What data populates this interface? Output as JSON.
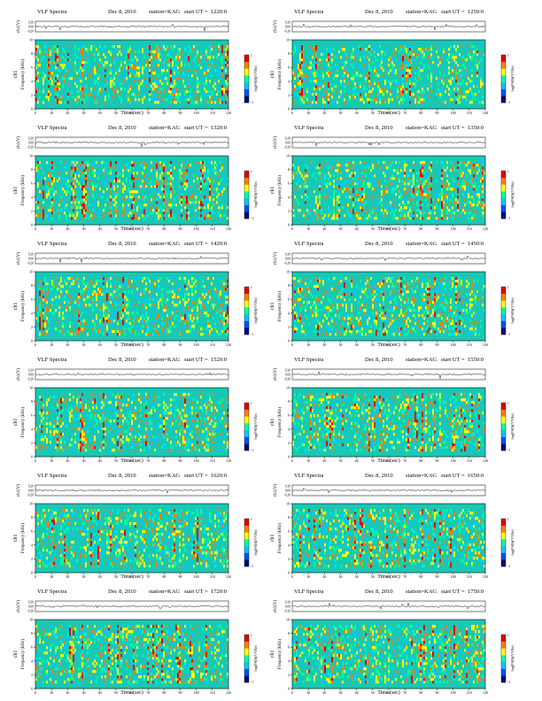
{
  "page": {
    "title": ""
  },
  "colors": {
    "bg": "#19c8b4",
    "scale": [
      "#000a78",
      "#0050ff",
      "#00c8ff",
      "#00ffa0",
      "#ffff00",
      "#ff8000",
      "#e00000"
    ],
    "trace": "#222222"
  },
  "chart_data": [
    {
      "type": "heatmap",
      "title": "VLF Spectra",
      "date": "Dec 8, 2010",
      "station": "station=KAG",
      "start_label": "start  UT  =",
      "start_ut": "1220:0",
      "xlabel": "Time  (sec)",
      "ylabel": "Frequency  (kHz)",
      "channel": "ch1",
      "top_ylabel": "ch1(V)",
      "cbar_label": "log(PSD)(V²/Hz)",
      "x_ticks": [
        0,
        10,
        20,
        30,
        40,
        50,
        60,
        70,
        80,
        90,
        100,
        110,
        120
      ],
      "y_ticks": [
        0,
        2,
        4,
        6,
        8,
        10
      ],
      "top_ticks": [
        "0.20",
        "0.00",
        "-0.20"
      ],
      "xlim": [
        0,
        120
      ],
      "ylim": [
        0,
        10
      ],
      "cbar_ticks": [
        "1",
        "-1"
      ]
    },
    {
      "type": "heatmap",
      "title": "VLF Spectra",
      "date": "Dec 8, 2010",
      "station": "station=KAG",
      "start_label": "start  UT  =",
      "start_ut": "1250:0",
      "xlabel": "Time  (sec)",
      "ylabel": "Frequency  (kHz)",
      "channel": "ch1",
      "top_ylabel": "ch1(V)",
      "cbar_label": "log(PSD)(V²/Hz)",
      "x_ticks": [
        0,
        10,
        20,
        30,
        40,
        50,
        60,
        70,
        80,
        90,
        100,
        110,
        120
      ],
      "y_ticks": [
        0,
        2,
        4,
        6,
        8,
        10
      ],
      "top_ticks": [
        "0.20",
        "0.00",
        "-0.20"
      ],
      "xlim": [
        0,
        120
      ],
      "ylim": [
        0,
        10
      ],
      "cbar_ticks": [
        "1",
        "-1"
      ]
    },
    {
      "type": "heatmap",
      "title": "VLF Spectra",
      "date": "Dec 8, 2010",
      "station": "station=KAG",
      "start_label": "start  UT  =",
      "start_ut": "1320:0",
      "xlabel": "Time  (sec)",
      "ylabel": "Frequency  (kHz)",
      "channel": "ch1",
      "top_ylabel": "ch1(V)",
      "cbar_label": "log(PSD)(V²/Hz)",
      "x_ticks": [
        0,
        10,
        20,
        30,
        40,
        50,
        60,
        70,
        80,
        90,
        100,
        110,
        120
      ],
      "y_ticks": [
        0,
        2,
        4,
        6,
        8,
        10
      ],
      "top_ticks": [
        "0.20",
        "0.00",
        "-0.20"
      ],
      "xlim": [
        0,
        120
      ],
      "ylim": [
        0,
        10
      ],
      "cbar_ticks": [
        "1",
        "-1"
      ]
    },
    {
      "type": "heatmap",
      "title": "VLF Spectra",
      "date": "Dec 8, 2010",
      "station": "station=KAG",
      "start_label": "start  UT  =",
      "start_ut": "1350:0",
      "xlabel": "Time  (sec)",
      "ylabel": "Frequency  (kHz)",
      "channel": "ch1",
      "top_ylabel": "ch1(V)",
      "cbar_label": "log(PSD)(V²/Hz)",
      "x_ticks": [
        0,
        10,
        20,
        30,
        40,
        50,
        60,
        70,
        80,
        90,
        100,
        110,
        120
      ],
      "y_ticks": [
        0,
        2,
        4,
        6,
        8,
        10
      ],
      "top_ticks": [
        "0.20",
        "0.00",
        "-0.20"
      ],
      "xlim": [
        0,
        120
      ],
      "ylim": [
        0,
        10
      ],
      "cbar_ticks": [
        "1",
        "-1"
      ]
    },
    {
      "type": "heatmap",
      "title": "VLF Spectra",
      "date": "Dec 8, 2010",
      "station": "station=KAG",
      "start_label": "start  UT  =",
      "start_ut": "1420:0",
      "xlabel": "Time  (sec)",
      "ylabel": "Frequency  (kHz)",
      "channel": "ch1",
      "top_ylabel": "ch1(V)",
      "cbar_label": "log(PSD)(V²/Hz)",
      "x_ticks": [
        0,
        10,
        20,
        30,
        40,
        50,
        60,
        70,
        80,
        90,
        100,
        110,
        120
      ],
      "y_ticks": [
        0,
        2,
        4,
        6,
        8,
        10
      ],
      "top_ticks": [
        "0.20",
        "0.00",
        "-0.20"
      ],
      "xlim": [
        0,
        120
      ],
      "ylim": [
        0,
        10
      ],
      "cbar_ticks": [
        "1",
        "-1"
      ]
    },
    {
      "type": "heatmap",
      "title": "VLF Spectra",
      "date": "Dec 8, 2010",
      "station": "station=KAG",
      "start_label": "start  UT  =",
      "start_ut": "1450:0",
      "xlabel": "Time  (sec)",
      "ylabel": "Frequency  (kHz)",
      "channel": "ch1",
      "top_ylabel": "ch1(V)",
      "cbar_label": "log(PSD)(V²/Hz)",
      "x_ticks": [
        0,
        10,
        20,
        30,
        40,
        50,
        60,
        70,
        80,
        90,
        100,
        110,
        120
      ],
      "y_ticks": [
        0,
        2,
        4,
        6,
        8,
        10
      ],
      "top_ticks": [
        "0.20",
        "0.00",
        "-0.20"
      ],
      "xlim": [
        0,
        120
      ],
      "ylim": [
        0,
        10
      ],
      "cbar_ticks": [
        "1",
        "-1"
      ]
    },
    {
      "type": "heatmap",
      "title": "VLF Spectra",
      "date": "Dec 8, 2010",
      "station": "station=KAG",
      "start_label": "start  UT  =",
      "start_ut": "1520:0",
      "xlabel": "Time  (sec)",
      "ylabel": "Frequency  (kHz)",
      "channel": "ch1",
      "top_ylabel": "ch1(V)",
      "cbar_label": "log(PSD)(V²/Hz)",
      "x_ticks": [
        0,
        10,
        20,
        30,
        40,
        50,
        60,
        70,
        80,
        90,
        100,
        110,
        120
      ],
      "y_ticks": [
        0,
        2,
        4,
        6,
        8,
        10
      ],
      "top_ticks": [
        "0.20",
        "0.00",
        "-0.20"
      ],
      "xlim": [
        0,
        120
      ],
      "ylim": [
        0,
        10
      ],
      "cbar_ticks": [
        "1",
        "-1"
      ]
    },
    {
      "type": "heatmap",
      "title": "VLF Spectra",
      "date": "Dec 8, 2010",
      "station": "station=KAG",
      "start_label": "start  UT  =",
      "start_ut": "1550:0",
      "xlabel": "Time  (sec)",
      "ylabel": "Frequency  (kHz)",
      "channel": "ch1",
      "top_ylabel": "ch1(V)",
      "cbar_label": "log(PSD)(V²/Hz)",
      "x_ticks": [
        0,
        10,
        20,
        30,
        40,
        50,
        60,
        70,
        80,
        90,
        100,
        110,
        120
      ],
      "y_ticks": [
        0,
        2,
        4,
        6,
        8,
        10
      ],
      "top_ticks": [
        "0.20",
        "0.00",
        "-0.20"
      ],
      "xlim": [
        0,
        120
      ],
      "ylim": [
        0,
        10
      ],
      "cbar_ticks": [
        "1",
        "-1"
      ]
    },
    {
      "type": "heatmap",
      "title": "VLF Spectra",
      "date": "Dec 8, 2010",
      "station": "station=KAG",
      "start_label": "start  UT  =",
      "start_ut": "1620:0",
      "xlabel": "Time  (sec)",
      "ylabel": "Frequency  (kHz)",
      "channel": "ch1",
      "top_ylabel": "ch1(V)",
      "cbar_label": "log(PSD)(V²/Hz)",
      "x_ticks": [
        0,
        10,
        20,
        30,
        40,
        50,
        60,
        70,
        80,
        90,
        100,
        110,
        120
      ],
      "y_ticks": [
        0,
        2,
        4,
        6,
        8,
        10
      ],
      "top_ticks": [
        "0.20",
        "0.00",
        "-0.20"
      ],
      "xlim": [
        0,
        120
      ],
      "ylim": [
        0,
        10
      ],
      "cbar_ticks": [
        "1",
        "-1"
      ]
    },
    {
      "type": "heatmap",
      "title": "VLF Spectra",
      "date": "Dec 8, 2010",
      "station": "station=KAG",
      "start_label": "start  UT  =",
      "start_ut": "1650:0",
      "xlabel": "Time  (sec)",
      "ylabel": "Frequency  (kHz)",
      "channel": "ch1",
      "top_ylabel": "ch1(V)",
      "cbar_label": "log(PSD)(V²/Hz)",
      "x_ticks": [
        0,
        10,
        20,
        30,
        40,
        50,
        60,
        70,
        80,
        90,
        100,
        110,
        120
      ],
      "y_ticks": [
        0,
        2,
        4,
        6,
        8,
        10
      ],
      "top_ticks": [
        "0.20",
        "0.00",
        "-0.20"
      ],
      "xlim": [
        0,
        120
      ],
      "ylim": [
        0,
        10
      ],
      "cbar_ticks": [
        "1",
        "-1"
      ]
    },
    {
      "type": "heatmap",
      "title": "VLF Spectra",
      "date": "Dec 8, 2010",
      "station": "station=KAG",
      "start_label": "start  UT  =",
      "start_ut": "1720:0",
      "xlabel": "Time  (sec)",
      "ylabel": "Frequency  (kHz)",
      "channel": "ch1",
      "top_ylabel": "ch1(V)",
      "cbar_label": "log(PSD)(V²/Hz)",
      "x_ticks": [
        0,
        10,
        20,
        30,
        40,
        50,
        60,
        70,
        80,
        90,
        100,
        110,
        120
      ],
      "y_ticks": [
        0,
        2,
        4,
        6,
        8,
        10
      ],
      "top_ticks": [
        "0.20",
        "0.00",
        "-0.20"
      ],
      "xlim": [
        0,
        120
      ],
      "ylim": [
        0,
        10
      ],
      "cbar_ticks": [
        "1",
        "-1"
      ]
    },
    {
      "type": "heatmap",
      "title": "VLF Spectra",
      "date": "Dec 8, 2010",
      "station": "station=KAG",
      "start_label": "start  UT  =",
      "start_ut": "1750:0",
      "xlabel": "Time  (sec)",
      "ylabel": "Frequency  (kHz)",
      "channel": "ch1",
      "top_ylabel": "ch1(V)",
      "cbar_label": "log(PSD)(V²/Hz)",
      "x_ticks": [
        0,
        10,
        20,
        30,
        40,
        50,
        60,
        70,
        80,
        90,
        100,
        110,
        120
      ],
      "y_ticks": [
        0,
        2,
        4,
        6,
        8,
        10
      ],
      "top_ticks": [
        "0.20",
        "0.00",
        "-0.20"
      ],
      "xlim": [
        0,
        120
      ],
      "ylim": [
        0,
        10
      ],
      "cbar_ticks": [
        "1",
        "-1"
      ]
    }
  ]
}
